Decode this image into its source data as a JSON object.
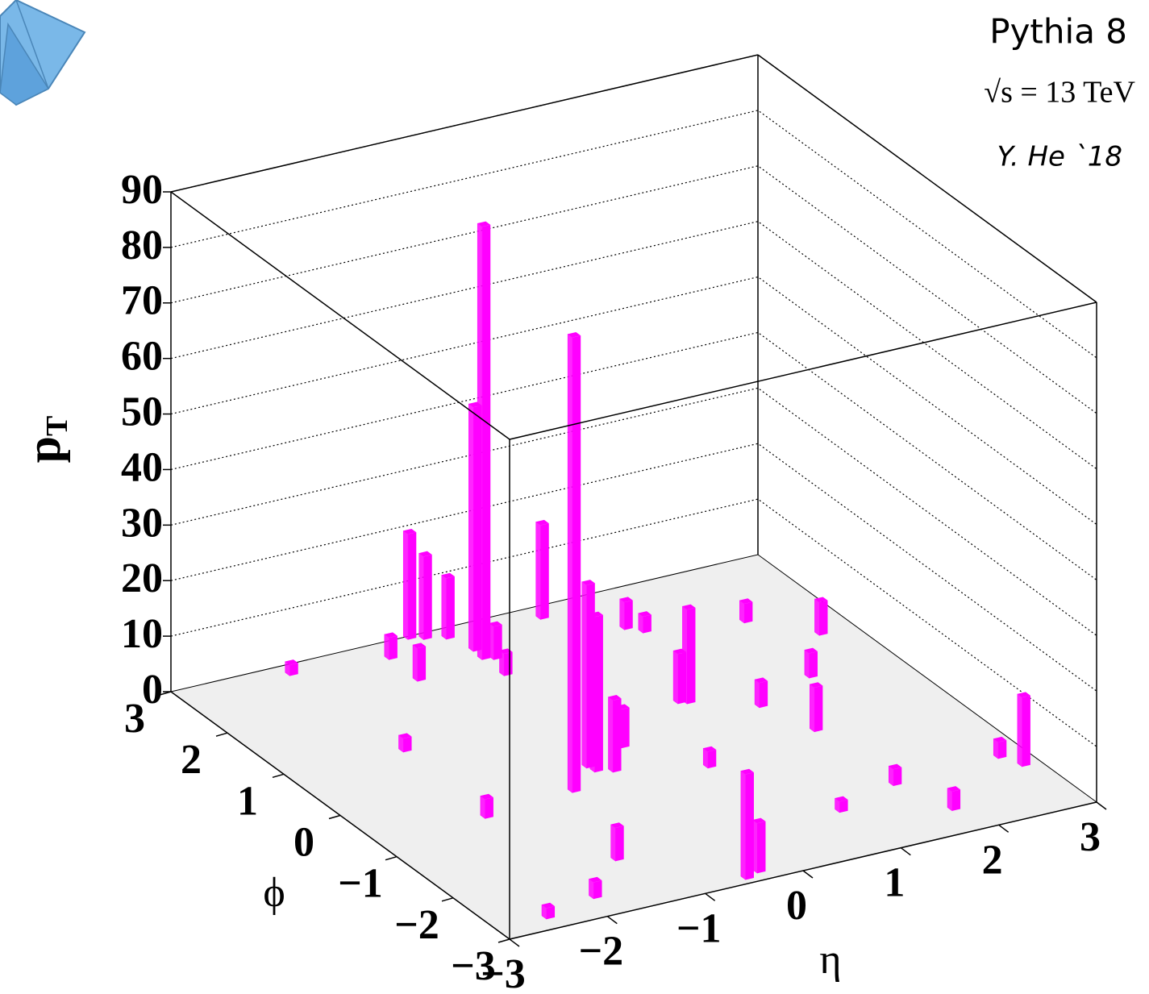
{
  "chart_data": {
    "type": "bar3d",
    "annotations": [
      "Pythia 8",
      "√s = 13 TeV",
      "Y. He `18"
    ],
    "x_label": "η",
    "y_label": "ϕ",
    "z_label": [
      "p",
      "T"
    ],
    "xlim": [
      -3,
      3
    ],
    "ylim": [
      -3,
      3
    ],
    "zlim": [
      0,
      90
    ],
    "xticks": [
      {
        "value": -3,
        "label": "−3"
      },
      {
        "value": -2,
        "label": "−2"
      },
      {
        "value": -1,
        "label": "−1"
      },
      0,
      1,
      2,
      3
    ],
    "yticks": [
      {
        "value": -3,
        "label": "−3"
      },
      {
        "value": -2,
        "label": "−2"
      },
      {
        "value": -1,
        "label": "−1"
      },
      0,
      1,
      2,
      3
    ],
    "zticks": [
      0,
      10,
      20,
      30,
      40,
      50,
      60,
      70,
      80,
      90
    ],
    "grid": true,
    "color": "#ff00ff",
    "floor_color": "#efefef",
    "x": [
      -0.21,
      -0.19,
      -0.92,
      -0.57,
      -0.45,
      -0.27,
      0.67,
      -0.55,
      -0.53,
      -0.39,
      -0.07,
      -0.5,
      -0.34,
      0.91,
      0.84,
      1.6,
      2.84,
      -0.94,
      -0.21,
      -0.12,
      -0.93,
      2.13,
      2.66,
      1.43,
      2.21,
      1.32,
      1.21,
      1.64,
      1.83,
      -1.31,
      0.39,
      -1.87,
      -1.87,
      -1.8,
      -2.46,
      -1.88,
      2.74,
      0.94
    ],
    "y": [
      2.29,
      2.48,
      -0.54,
      2.98,
      2.91,
      2.82,
      2.78,
      -0.15,
      -0.26,
      -0.34,
      0.07,
      -2.88,
      -2.81,
      0.6,
      0.64,
      -0.46,
      -1.99,
      2.17,
      1.9,
      2.24,
      2.69,
      0.55,
      1.29,
      0.22,
      1.84,
      2.09,
      2.23,
      -1.79,
      -2.5,
      -1.98,
      -0.67,
      2.82,
      -0.64,
      0.93,
      -2.75,
      -2.58,
      -1.74,
      -2.05
    ],
    "values": [
      78,
      44,
      82,
      19,
      15,
      11,
      17,
      33,
      28,
      13,
      7,
      19,
      9,
      17,
      9,
      8,
      12.5,
      6,
      4,
      6,
      4,
      4.5,
      6,
      4.5,
      3.5,
      3,
      5,
      3,
      3.5,
      6,
      3,
      2,
      3.5,
      2.5,
      2,
      3,
      3,
      2
    ]
  }
}
